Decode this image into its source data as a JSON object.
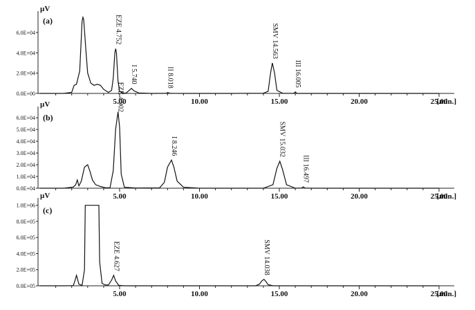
{
  "chart_data": [
    {
      "type": "line",
      "panel_label": "(a)",
      "y_unit": "µV",
      "x_unit": "[min.]",
      "x_ticks": [
        "5.00",
        "10.00",
        "15.00",
        "20.00",
        "25.00"
      ],
      "y_ticks": [
        {
          "value": 0,
          "label": "0.0E+00"
        },
        {
          "value": 20000,
          "label": "2.0E+04"
        },
        {
          "value": 40000,
          "label": "4.0E+04"
        },
        {
          "value": 60000,
          "label": "6.0E+04"
        }
      ],
      "xlim": [
        0.0,
        25.0
      ],
      "ylim": [
        0,
        77000
      ],
      "peaks": [
        {
          "label": "EZE 4.752",
          "rt": 4.752,
          "height": 44000
        },
        {
          "label": "I 5.740",
          "rt": 5.74,
          "height": 5000
        },
        {
          "label": "II 8.018",
          "rt": 8.018,
          "height": 800
        },
        {
          "label": "SMV 14.563",
          "rt": 14.563,
          "height": 30000
        },
        {
          "label": "III 16.005",
          "rt": 16.005,
          "height": 1500
        }
      ],
      "series": [
        {
          "x": [
            0.0,
            1.5,
            2.0,
            2.15,
            2.3,
            2.5,
            2.6,
            2.65,
            2.7,
            2.75,
            2.8,
            2.9,
            3.0,
            3.2,
            3.4,
            3.6,
            3.8,
            4.0,
            4.3,
            4.5,
            4.6,
            4.7,
            4.752,
            4.8,
            4.9,
            5.0,
            5.2,
            5.4,
            5.6,
            5.74,
            5.9,
            6.2,
            7.0,
            7.9,
            8.018,
            8.15,
            9.0,
            12.0,
            14.0,
            14.3,
            14.45,
            14.563,
            14.7,
            14.85,
            15.2,
            15.9,
            16.005,
            16.1,
            17.0,
            25.0
          ],
          "y": [
            0,
            0,
            1000,
            8000,
            9000,
            22000,
            55000,
            71000,
            75000,
            73000,
            62000,
            40000,
            20000,
            10000,
            8000,
            9000,
            8000,
            4000,
            1000,
            3000,
            15000,
            40000,
            44000,
            40000,
            12000,
            2000,
            500,
            300,
            3000,
            5000,
            2500,
            500,
            0,
            100,
            800,
            100,
            0,
            0,
            200,
            2000,
            20000,
            30000,
            20000,
            3000,
            200,
            0,
            1500,
            0,
            0,
            0
          ]
        }
      ]
    },
    {
      "type": "line",
      "panel_label": "(b)",
      "y_unit": "µV",
      "x_unit": "[min.]",
      "x_ticks": [
        "5.00",
        "10.00",
        "15.00",
        "20.00",
        "25.00"
      ],
      "y_ticks": [
        {
          "value": 0,
          "label": "0.0E+04"
        },
        {
          "value": 10000,
          "label": "1.0E+04"
        },
        {
          "value": 20000,
          "label": "2.0E+04"
        },
        {
          "value": 30000,
          "label": "3.0E+04"
        },
        {
          "value": 40000,
          "label": "4.0E+04"
        },
        {
          "value": 50000,
          "label": "5.0E+04"
        },
        {
          "value": 60000,
          "label": "6.0E+04"
        }
      ],
      "xlim": [
        0.0,
        25.0
      ],
      "ylim": [
        0,
        66000
      ],
      "peaks": [
        {
          "label": "EZE 4.902",
          "rt": 4.902,
          "height": 65000
        },
        {
          "label": "I 8.246",
          "rt": 8.246,
          "height": 24000
        },
        {
          "label": "SMV 15.032",
          "rt": 15.032,
          "height": 23000
        },
        {
          "label": "III 16.497",
          "rt": 16.497,
          "height": 1200
        }
      ],
      "series": [
        {
          "x": [
            0.0,
            1.5,
            2.1,
            2.25,
            2.35,
            2.45,
            2.6,
            2.8,
            3.0,
            3.15,
            3.3,
            3.5,
            3.8,
            4.1,
            4.4,
            4.6,
            4.75,
            4.902,
            5.0,
            5.1,
            5.3,
            6.0,
            7.5,
            7.8,
            8.0,
            8.246,
            8.4,
            8.6,
            9.0,
            10.0,
            14.0,
            14.6,
            14.85,
            15.032,
            15.2,
            15.45,
            16.0,
            16.4,
            16.497,
            16.6,
            17.0,
            25.0
          ],
          "y": [
            0,
            0,
            1000,
            3000,
            7000,
            2000,
            6000,
            18000,
            20000,
            14000,
            7000,
            3000,
            1500,
            500,
            300,
            15000,
            50000,
            65000,
            52000,
            12000,
            800,
            200,
            300,
            5000,
            18000,
            24000,
            18000,
            6000,
            800,
            0,
            0,
            3000,
            17000,
            23000,
            16000,
            3000,
            0,
            200,
            1200,
            200,
            0,
            0
          ]
        }
      ]
    },
    {
      "type": "line",
      "panel_label": "(c)",
      "y_unit": "µV",
      "x_unit": "[min.]",
      "x_ticks": [
        "5.00",
        "10.00",
        "15.00",
        "20.00",
        "25.00"
      ],
      "y_ticks": [
        {
          "value": 0,
          "label": "0.0E+05"
        },
        {
          "value": 200000,
          "label": "2.0E+05"
        },
        {
          "value": 400000,
          "label": "4.0E+05"
        },
        {
          "value": 600000,
          "label": "6.0E+05"
        },
        {
          "value": 800000,
          "label": "8.0E+05"
        },
        {
          "value": 1000000,
          "label": "1.0E+06"
        }
      ],
      "xlim": [
        0.0,
        25.0
      ],
      "ylim": [
        0,
        1040000
      ],
      "peaks": [
        {
          "label": "EZE 4.627",
          "rt": 4.627,
          "height": 130000
        },
        {
          "label": "SMV 14.038",
          "rt": 14.038,
          "height": 80000
        }
      ],
      "series": [
        {
          "x": [
            0.0,
            1.6,
            2.1,
            2.2,
            2.3,
            2.45,
            2.65,
            2.8,
            2.85,
            3.2,
            3.7,
            3.75,
            3.9,
            4.1,
            4.3,
            4.5,
            4.627,
            4.75,
            4.95,
            5.3,
            6.0,
            13.5,
            13.75,
            13.9,
            14.038,
            14.15,
            14.3,
            14.6,
            25.0
          ],
          "y": [
            0,
            0,
            3000,
            60000,
            130000,
            20000,
            5000,
            200000,
            1000000,
            1000000,
            1000000,
            300000,
            30000,
            10000,
            10000,
            70000,
            130000,
            60000,
            5000,
            0,
            0,
            0,
            20000,
            60000,
            80000,
            55000,
            15000,
            0,
            0
          ]
        }
      ]
    }
  ]
}
